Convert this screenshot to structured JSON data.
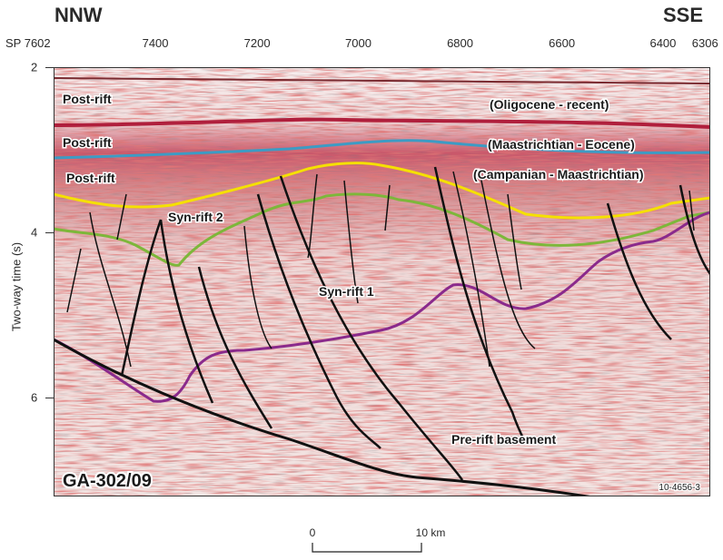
{
  "header": {
    "left_direction": "NNW",
    "right_direction": "SSE"
  },
  "shotpoints": [
    {
      "label": "SP 7602",
      "pos": 0
    },
    {
      "label": "7400",
      "pos": 0.155
    },
    {
      "label": "7200",
      "pos": 0.31
    },
    {
      "label": "7000",
      "pos": 0.464
    },
    {
      "label": "6800",
      "pos": 0.619
    },
    {
      "label": "6600",
      "pos": 0.774
    },
    {
      "label": "6400",
      "pos": 0.928
    },
    {
      "label": "6306",
      "pos": 1.0
    }
  ],
  "y_axis": {
    "title": "Two-way time (s)",
    "range": [
      2,
      7.2
    ],
    "ticks": [
      {
        "label": "2",
        "value": 2
      },
      {
        "label": "4",
        "value": 4
      },
      {
        "label": "6",
        "value": 6
      }
    ]
  },
  "units": [
    {
      "text": "Post-rift"
    },
    {
      "text": "(Oligocene - recent)"
    },
    {
      "text": "Post-rift"
    },
    {
      "text": "(Maastrichtian - Eocene)"
    },
    {
      "text": "Post-rift"
    },
    {
      "text": "(Campanian - Maastrichtian)"
    },
    {
      "text": "Syn-rift 2"
    },
    {
      "text": "Syn-rift 1"
    },
    {
      "text": "Pre-rift basement"
    }
  ],
  "line_name": "GA-302/09",
  "figure_code": "10-4656-3",
  "scale_bar": {
    "start_label": "0",
    "end_label": "10 km"
  },
  "horizon_colors": {
    "top_red": "#b01f3c",
    "blue": "#3d9bc4",
    "yellow": "#f5e000",
    "green": "#7db73a",
    "basement": "#8a2a8c",
    "fault": "#111111"
  }
}
